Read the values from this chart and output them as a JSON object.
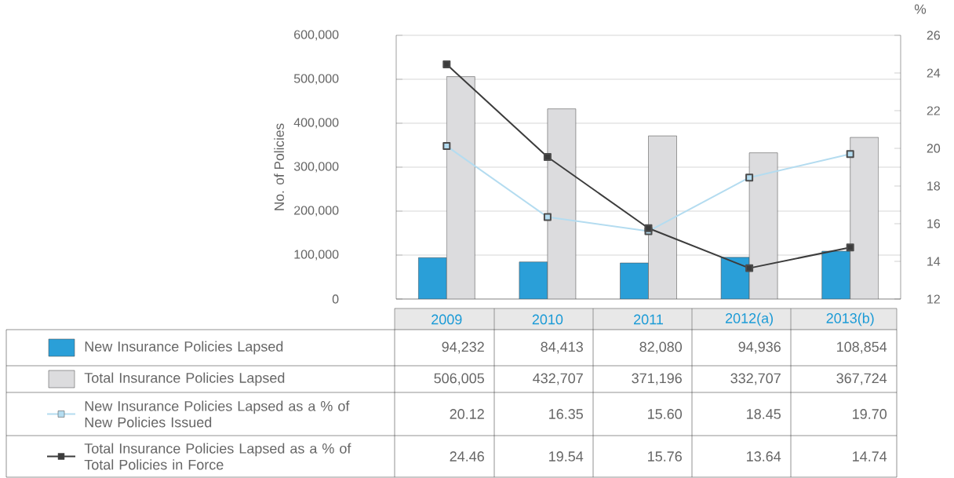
{
  "chart_data": {
    "type": "bar",
    "ylabel": "No. of Policies",
    "y2label": "%",
    "categories": [
      "2009",
      "2010",
      "2011",
      "2012(a)",
      "2013(b)"
    ],
    "series": [
      {
        "name": "New Insurance Policies Lapsed",
        "type": "bar",
        "color": "#2a9fd8",
        "values": [
          94232,
          84413,
          82080,
          94936,
          108854
        ],
        "value_labels": [
          "94,232",
          "84,413",
          "82,080",
          "94,936",
          "108,854"
        ]
      },
      {
        "name": "Total Insurance Policies Lapsed",
        "type": "bar",
        "color": "#dcdcde",
        "values": [
          506005,
          432707,
          371196,
          332707,
          367724
        ],
        "value_labels": [
          "506,005",
          "432,707",
          "371,196",
          "332,707",
          "367,724"
        ]
      },
      {
        "name": "New Insurance Policies Lapsed as a % of New Policies Issued",
        "type": "line",
        "axis": "y2",
        "color": "#b4dcf0",
        "values": [
          20.12,
          16.35,
          15.6,
          18.45,
          19.7
        ],
        "value_labels": [
          "20.12",
          "16.35",
          "15.60",
          "18.45",
          "19.70"
        ]
      },
      {
        "name": "Total Insurance Policies Lapsed as a % of Total Policies in Force",
        "type": "line",
        "axis": "y2",
        "color": "#3c3c3c",
        "values": [
          24.46,
          19.54,
          15.76,
          13.64,
          14.74
        ],
        "value_labels": [
          "24.46",
          "19.54",
          "15.76",
          "13.64",
          "14.74"
        ]
      }
    ],
    "ylim": [
      0,
      600000
    ],
    "yticks": [
      {
        "value": 0,
        "label": "0"
      },
      {
        "value": 100000,
        "label": "100,000"
      },
      {
        "value": 200000,
        "label": "200,000"
      },
      {
        "value": 300000,
        "label": "300,000"
      },
      {
        "value": 400000,
        "label": "400,000"
      },
      {
        "value": 500000,
        "label": "500,000"
      },
      {
        "value": 600000,
        "label": "600,000"
      }
    ],
    "y2lim": [
      12,
      26
    ],
    "y2ticks": [
      12,
      14,
      16,
      18,
      20,
      22,
      24,
      26
    ],
    "grid": "y",
    "legend": "bottom",
    "marker": "square",
    "line_style": "solid"
  }
}
